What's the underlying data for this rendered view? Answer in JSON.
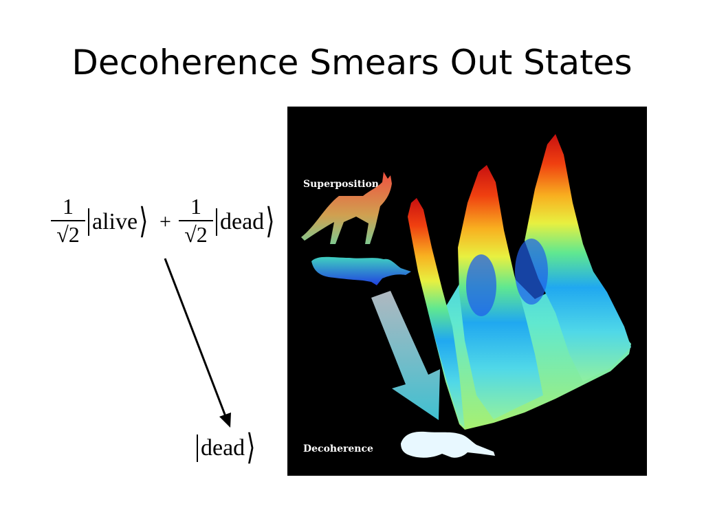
{
  "slide": {
    "title": "Decoherence Smears Out States"
  },
  "equation": {
    "coef_numerator": "1",
    "coef_denominator": "√2",
    "plus": "+",
    "state_alive": "alive",
    "state_dead": "dead",
    "result_state": "dead"
  },
  "image": {
    "label_top": "Superposition",
    "label_bottom": "Decoherence"
  },
  "colors": {
    "arrow": "#000000",
    "image_background": "#000000",
    "big_arrow": "#5bc8d0",
    "label_text": "#ffffff"
  }
}
